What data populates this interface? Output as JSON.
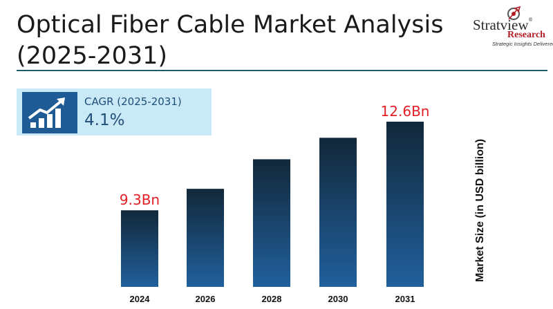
{
  "header": {
    "title_line1": "Optical Fiber Cable Market Analysis",
    "title_line2": "(2025-2031)"
  },
  "logo": {
    "name": "Stratview",
    "mark": "®",
    "sub": "Research",
    "tagline": "Strategic Insights Delivered"
  },
  "cagr": {
    "label": "CAGR (2025-2031)",
    "value": "4.1%",
    "icon": "growth-chart-icon"
  },
  "colors": {
    "bar_top": "#12283a",
    "bar_bottom": "#21609d",
    "label_red": "#e31e24",
    "rule": "#1e5a6e",
    "cagr_bg": "#c9e9f6",
    "icon_bg": "#1f5c95"
  },
  "chart_data": {
    "type": "bar",
    "categories": [
      "2024",
      "2026",
      "2028",
      "2030",
      "2031"
    ],
    "values": [
      9.3,
      10.1,
      11.2,
      12.0,
      12.6
    ],
    "data_labels": [
      "9.3Bn",
      "",
      "",
      "",
      "12.6Bn"
    ],
    "ylabel": "Market Size (in USD billion)",
    "ylim": [
      6.45,
      12.6
    ],
    "grid": false,
    "legend": "none"
  }
}
